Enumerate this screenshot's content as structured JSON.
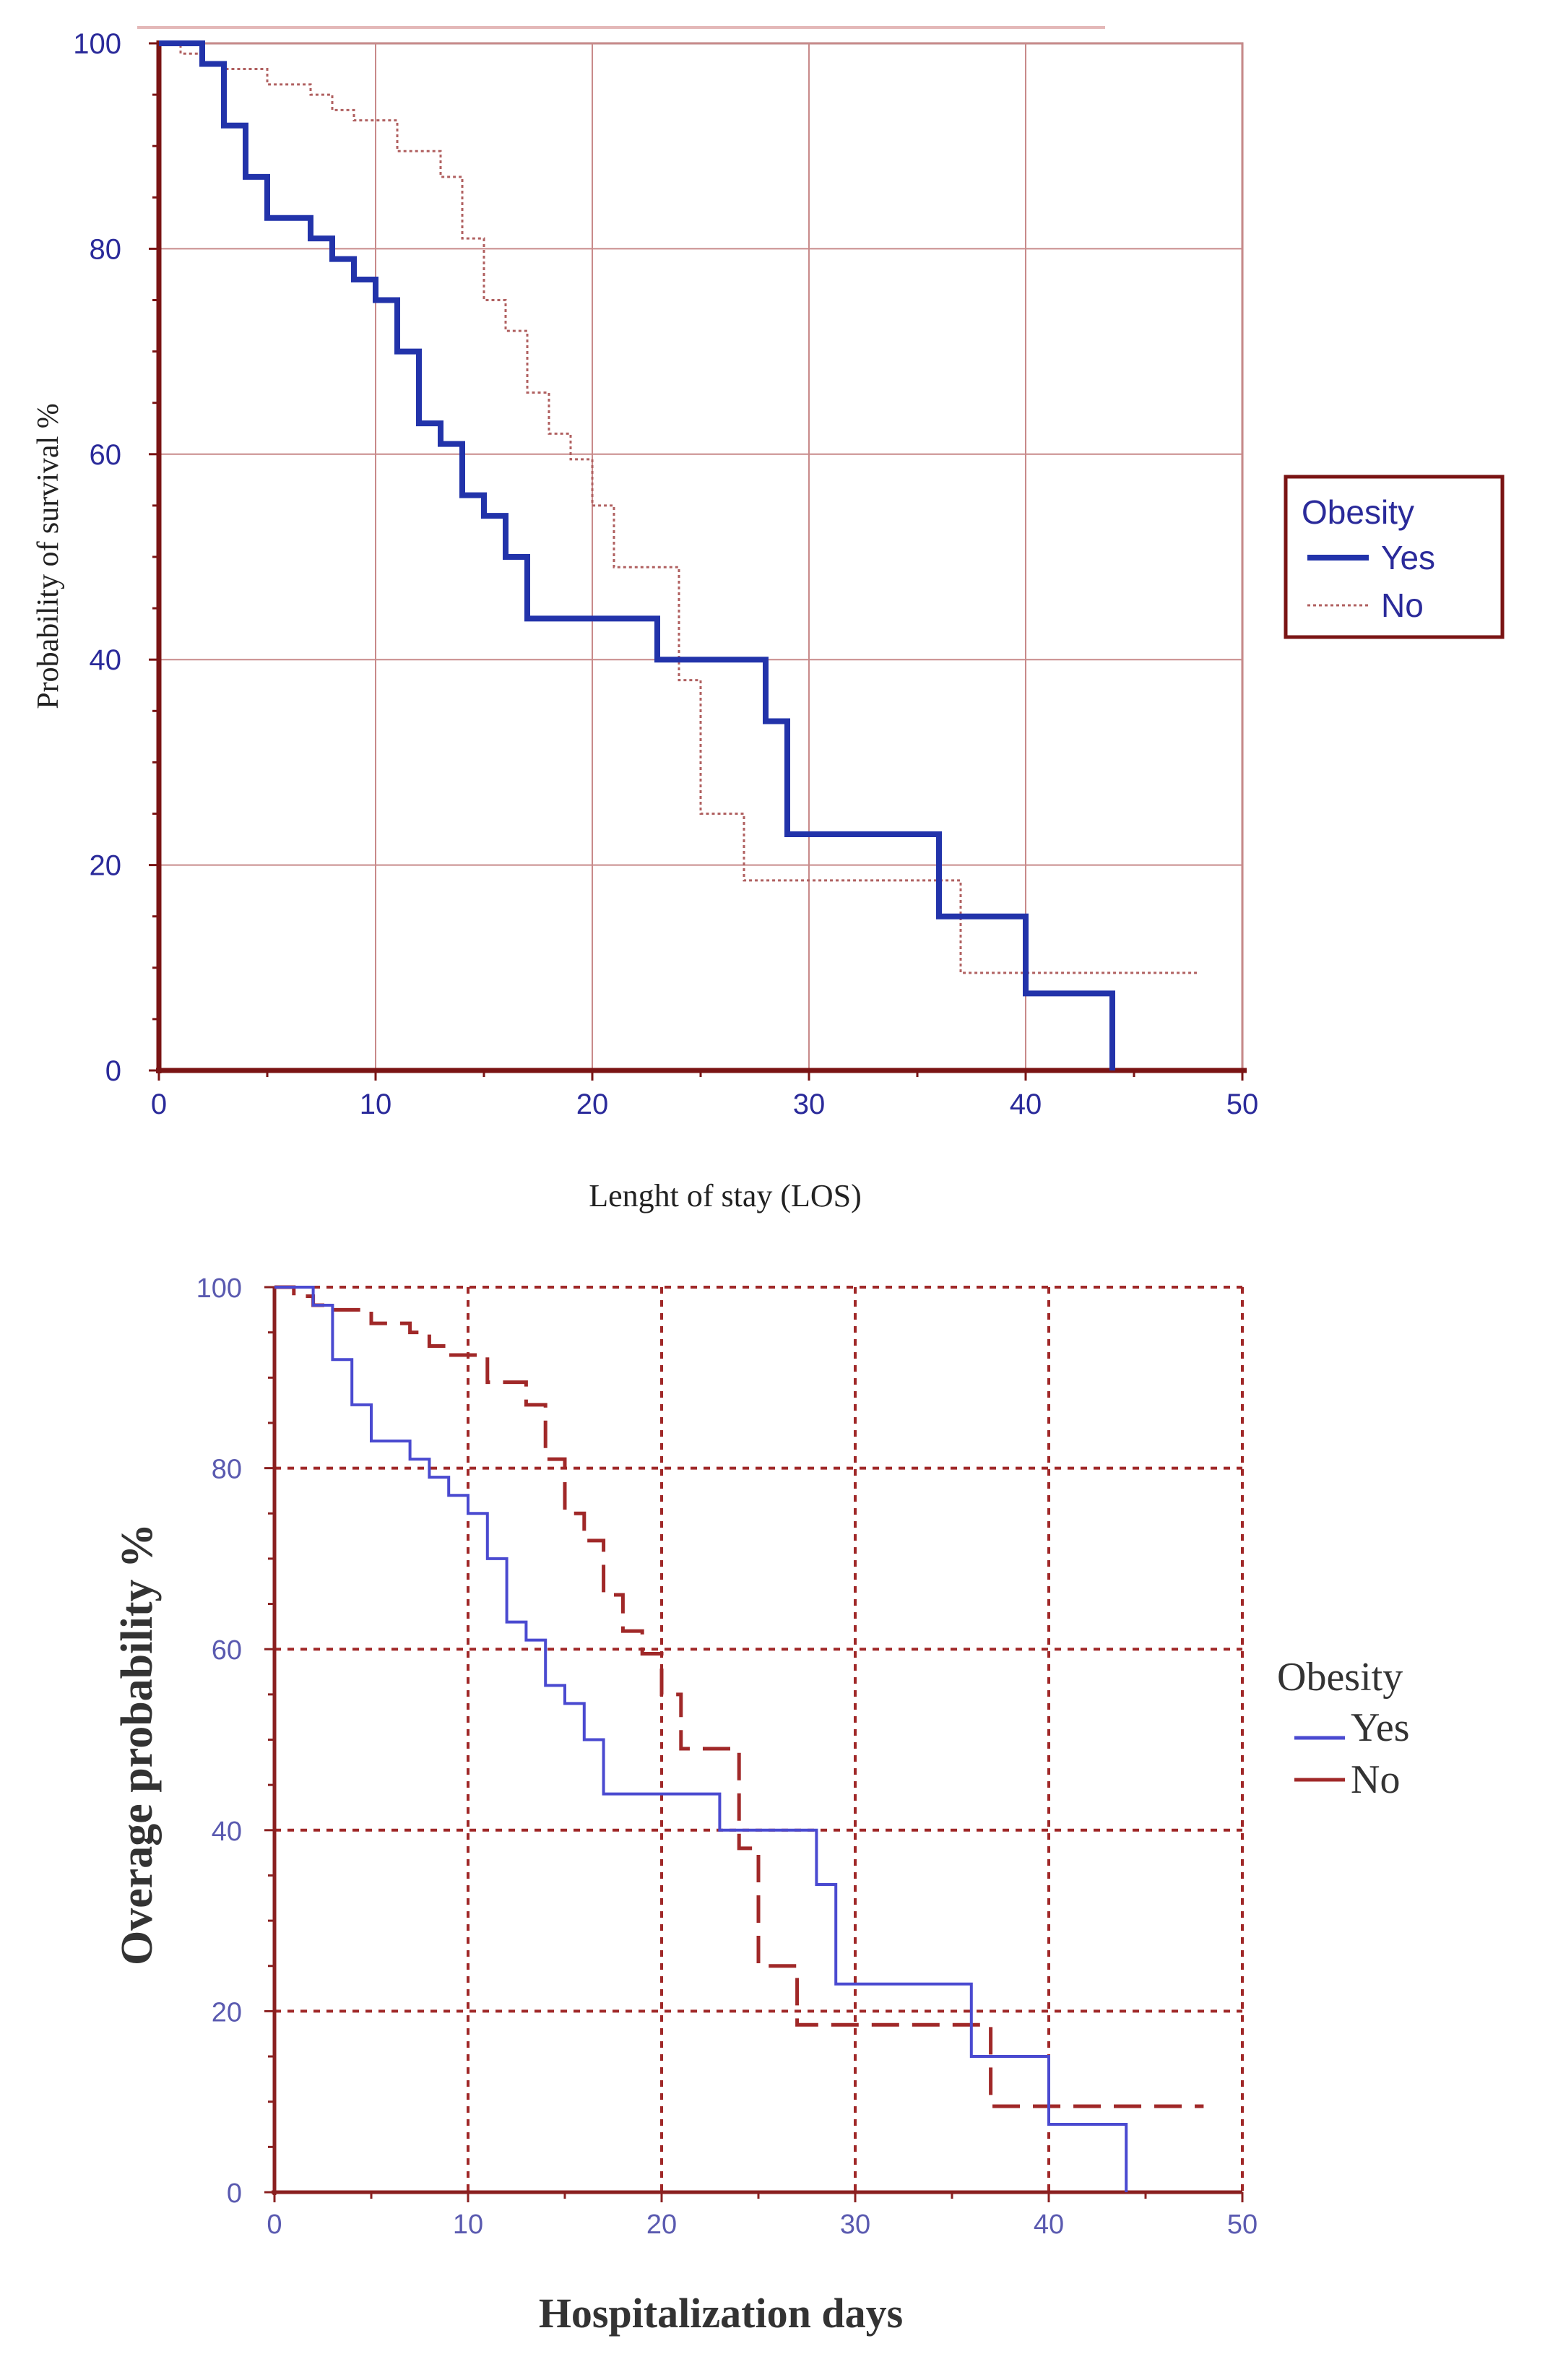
{
  "chart_data": [
    {
      "type": "line",
      "style": "step",
      "title": "",
      "xlabel": "Lenght of stay (LOS)",
      "ylabel": "Probability of survival %",
      "xlim": [
        0,
        50
      ],
      "ylim": [
        0,
        100
      ],
      "x_ticks": [
        "0",
        "10",
        "20",
        "30",
        "40",
        "50"
      ],
      "y_ticks": [
        "0",
        "20",
        "40",
        "60",
        "80",
        "100"
      ],
      "grid": true,
      "legend": {
        "title": "Obesity",
        "position": "right",
        "entries": [
          "Yes",
          "No"
        ]
      },
      "series": [
        {
          "name": "Yes",
          "color": "#2233aa",
          "line": "solid",
          "points": [
            [
              0,
              100
            ],
            [
              2,
              98
            ],
            [
              3,
              92
            ],
            [
              4,
              87
            ],
            [
              5,
              83
            ],
            [
              7,
              81
            ],
            [
              8,
              79
            ],
            [
              9,
              77
            ],
            [
              10,
              75
            ],
            [
              11,
              70
            ],
            [
              12,
              63
            ],
            [
              13,
              61
            ],
            [
              14,
              56
            ],
            [
              15,
              54
            ],
            [
              16,
              50
            ],
            [
              17,
              44
            ],
            [
              23,
              40
            ],
            [
              28,
              34
            ],
            [
              29,
              23
            ],
            [
              36,
              15
            ],
            [
              40,
              7.5
            ],
            [
              44,
              0
            ]
          ]
        },
        {
          "name": "No",
          "color": "#b06060",
          "line": "dotted",
          "points": [
            [
              0,
              100
            ],
            [
              1,
              99
            ],
            [
              2,
              98
            ],
            [
              3,
              97.5
            ],
            [
              5,
              96
            ],
            [
              7,
              95
            ],
            [
              8,
              93.5
            ],
            [
              9,
              92.5
            ],
            [
              11,
              89.5
            ],
            [
              13,
              87
            ],
            [
              14,
              81
            ],
            [
              15,
              75
            ],
            [
              16,
              72
            ],
            [
              17,
              66
            ],
            [
              18,
              62
            ],
            [
              19,
              59.5
            ],
            [
              20,
              55
            ],
            [
              21,
              49
            ],
            [
              24,
              38
            ],
            [
              25,
              25
            ],
            [
              27,
              18.5
            ],
            [
              37,
              9.5
            ],
            [
              48,
              9.5
            ]
          ]
        }
      ]
    },
    {
      "type": "line",
      "style": "step",
      "title": "",
      "xlabel": "Hospitalization days",
      "ylabel": "Overage probability %",
      "xlim": [
        0,
        50
      ],
      "ylim": [
        0,
        100
      ],
      "x_ticks": [
        "0",
        "10",
        "20",
        "30",
        "40",
        "50"
      ],
      "y_ticks": [
        "0",
        "20",
        "40",
        "60",
        "80",
        "100"
      ],
      "grid": true,
      "legend": {
        "title": "Obesity",
        "position": "right",
        "entries": [
          "Yes",
          "No"
        ]
      },
      "series": [
        {
          "name": "Yes",
          "color": "#4a4ad0",
          "line": "solid",
          "points": [
            [
              0,
              100
            ],
            [
              2,
              98
            ],
            [
              3,
              92
            ],
            [
              4,
              87
            ],
            [
              5,
              83
            ],
            [
              7,
              81
            ],
            [
              8,
              79
            ],
            [
              9,
              77
            ],
            [
              10,
              75
            ],
            [
              11,
              70
            ],
            [
              12,
              63
            ],
            [
              13,
              61
            ],
            [
              14,
              56
            ],
            [
              15,
              54
            ],
            [
              16,
              50
            ],
            [
              17,
              44
            ],
            [
              23,
              40
            ],
            [
              28,
              34
            ],
            [
              29,
              23
            ],
            [
              36,
              15
            ],
            [
              40,
              7.5
            ],
            [
              44,
              0
            ]
          ]
        },
        {
          "name": "No",
          "color": "#a02828",
          "line": "dashed",
          "points": [
            [
              0,
              100
            ],
            [
              1,
              99
            ],
            [
              2,
              98
            ],
            [
              3,
              97.5
            ],
            [
              5,
              96
            ],
            [
              7,
              95
            ],
            [
              8,
              93.5
            ],
            [
              9,
              92.5
            ],
            [
              11,
              89.5
            ],
            [
              13,
              87
            ],
            [
              14,
              81
            ],
            [
              15,
              75
            ],
            [
              16,
              72
            ],
            [
              17,
              66
            ],
            [
              18,
              62
            ],
            [
              19,
              59.5
            ],
            [
              20,
              55
            ],
            [
              21,
              49
            ],
            [
              24,
              38
            ],
            [
              25,
              25
            ],
            [
              27,
              18.5
            ],
            [
              37,
              9.5
            ],
            [
              48,
              9.5
            ]
          ]
        }
      ]
    }
  ]
}
